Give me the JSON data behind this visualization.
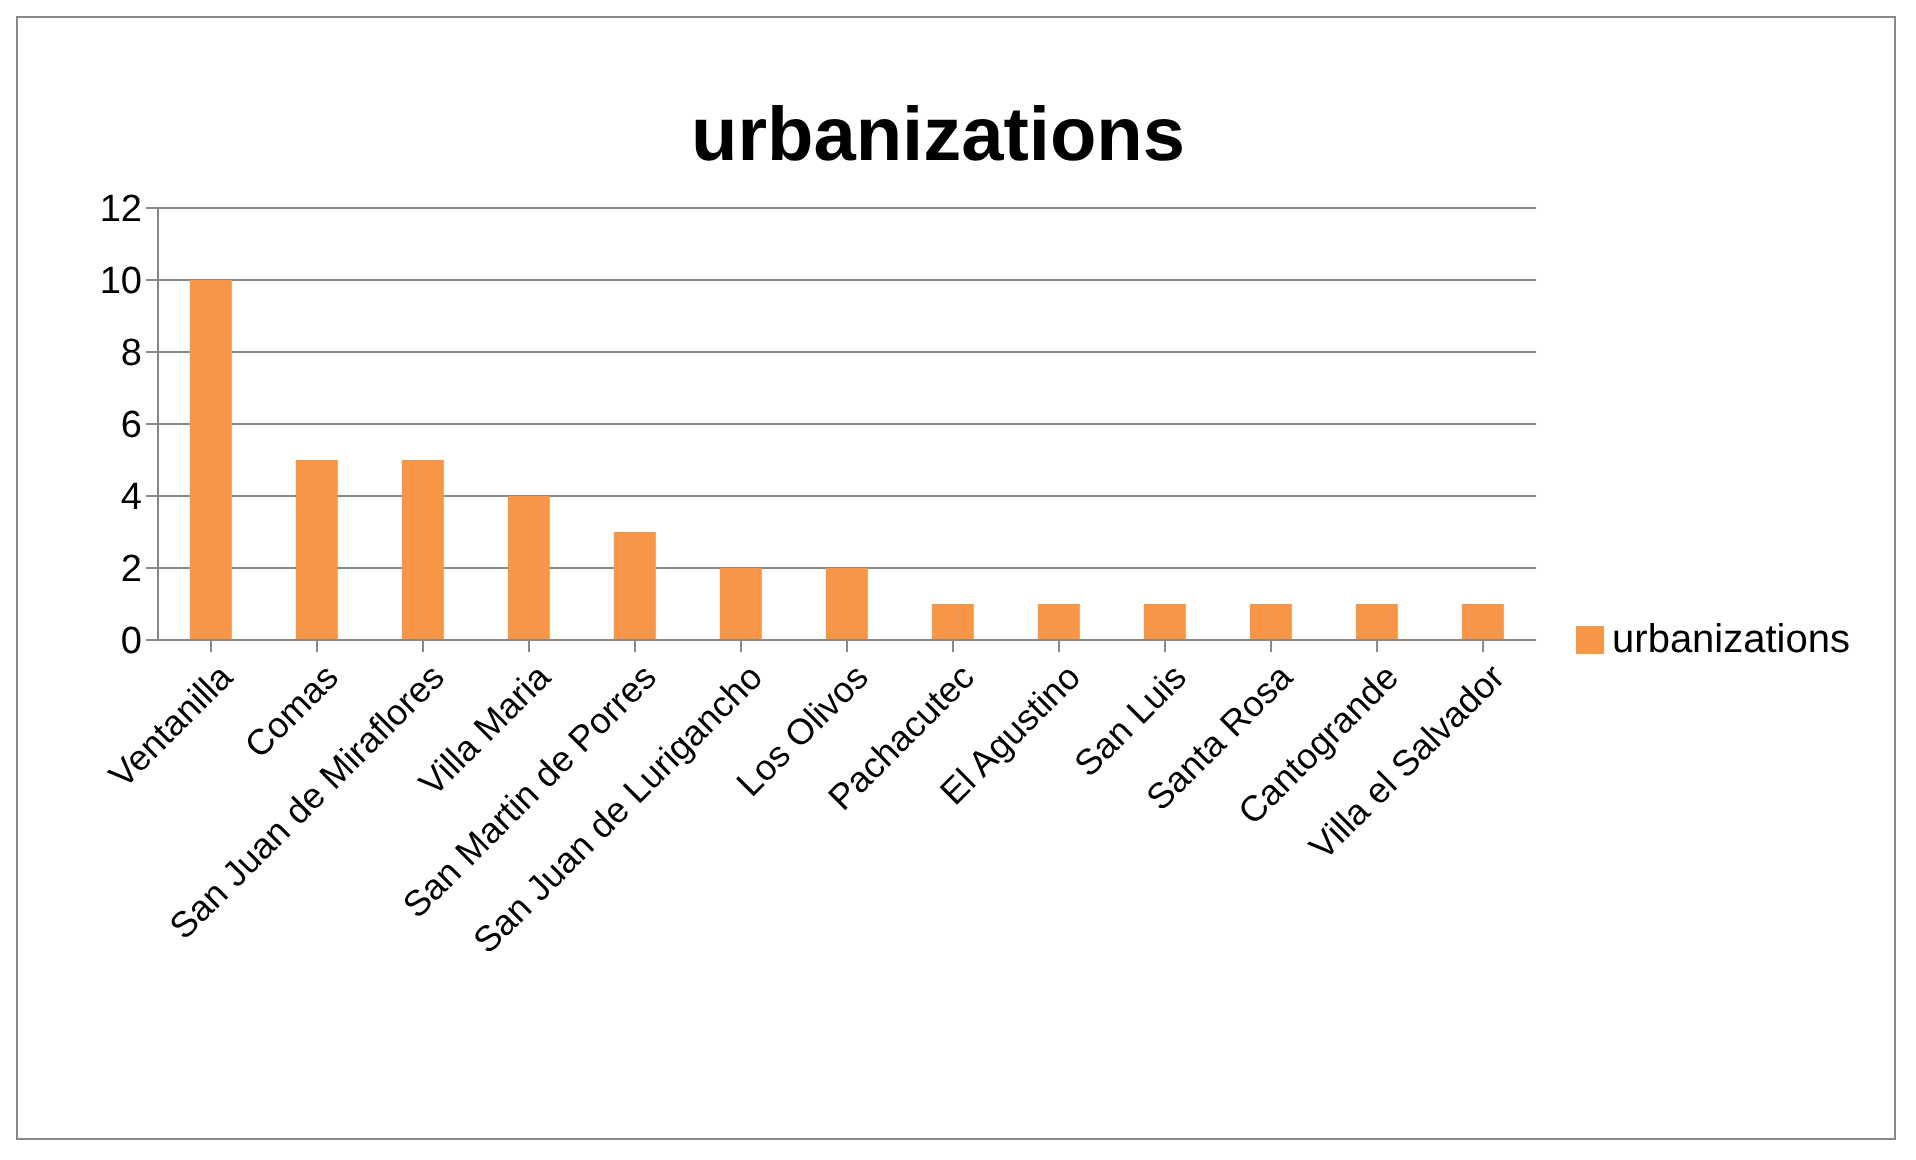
{
  "chart_data": {
    "type": "bar",
    "title": "urbanizations",
    "categories": [
      "Ventanilla",
      "Comas",
      "San Juan de Miraflores",
      "Villa Maria",
      "San Martin de Porres",
      "San Juan de Lurigancho",
      "Los Olivos",
      "Pachacutec",
      "El Agustino",
      "San Luis",
      "Santa Rosa",
      "Cantogrande",
      "Villa el Salvador"
    ],
    "series": [
      {
        "name": "urbanizations",
        "color": "#f79646",
        "values": [
          10,
          5,
          5,
          4,
          3,
          2,
          2,
          1,
          1,
          1,
          1,
          1,
          1
        ]
      }
    ],
    "ylim": [
      0,
      12
    ],
    "yticks": [
      0,
      2,
      4,
      6,
      8,
      10,
      12
    ],
    "grid": "y",
    "legend": "right"
  }
}
